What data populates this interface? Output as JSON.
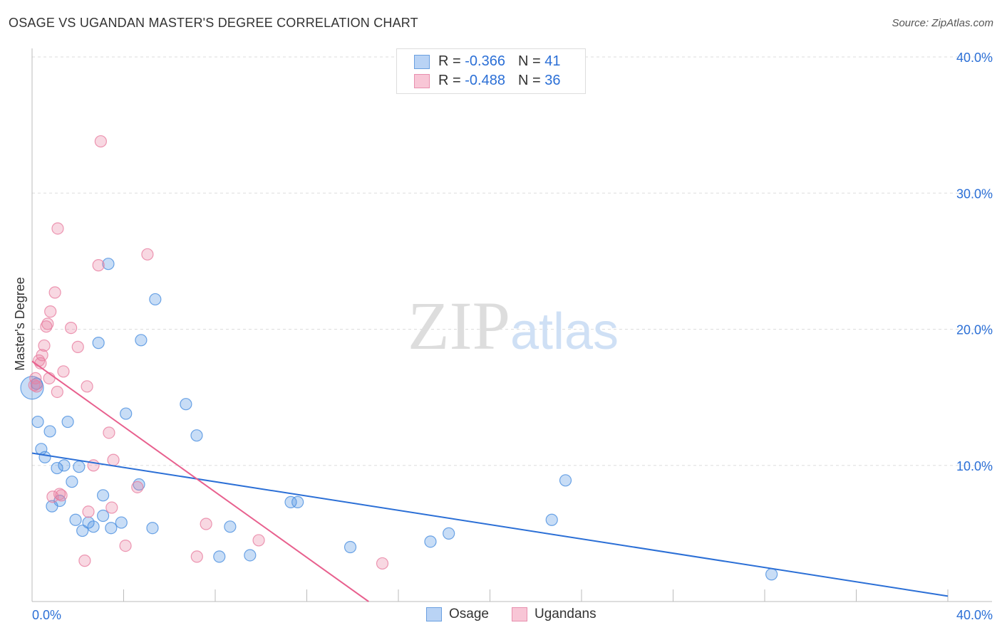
{
  "chart_data": {
    "type": "scatter",
    "title": "OSAGE VS UGANDAN MASTER'S DEGREE CORRELATION CHART",
    "source": "Source: ZipAtlas.com",
    "xlabel": "",
    "ylabel": "Master's Degree",
    "xlim": [
      0,
      40
    ],
    "ylim": [
      0,
      40
    ],
    "x_tick_labels": [
      "0.0%",
      "40.0%"
    ],
    "y_tick_labels": [
      "10.0%",
      "20.0%",
      "30.0%",
      "40.0%"
    ],
    "y_ticks": [
      10,
      20,
      30,
      40
    ],
    "watermark": "ZIPatlas",
    "legend": [
      {
        "r_label": "R =",
        "r": "-0.366",
        "n_label": "N =",
        "n": "41"
      },
      {
        "r_label": "R =",
        "r": "-0.488",
        "n_label": "N =",
        "n": "36"
      }
    ],
    "series": [
      {
        "name": "Osage",
        "color": "#4a8ee0",
        "line_color": "#2b6fd6",
        "trend": [
          [
            0,
            10.9
          ],
          [
            40,
            0.4
          ]
        ],
        "points": [
          [
            0,
            15.7
          ],
          [
            0.25,
            13.2
          ],
          [
            0.78,
            12.5
          ],
          [
            1.56,
            13.2
          ],
          [
            0.4,
            11.2
          ],
          [
            0.56,
            10.6
          ],
          [
            1.09,
            9.8
          ],
          [
            1.4,
            10.0
          ],
          [
            2.05,
            9.9
          ],
          [
            1.74,
            8.8
          ],
          [
            1.21,
            7.4
          ],
          [
            0.87,
            7.0
          ],
          [
            3.1,
            7.8
          ],
          [
            4.67,
            8.6
          ],
          [
            1.9,
            6.0
          ],
          [
            2.2,
            5.2
          ],
          [
            2.46,
            5.8
          ],
          [
            2.68,
            5.5
          ],
          [
            3.1,
            6.3
          ],
          [
            3.45,
            5.4
          ],
          [
            3.9,
            5.8
          ],
          [
            5.26,
            5.4
          ],
          [
            3.33,
            24.8
          ],
          [
            5.38,
            22.2
          ],
          [
            2.9,
            19.0
          ],
          [
            4.76,
            19.2
          ],
          [
            4.1,
            13.8
          ],
          [
            6.72,
            14.5
          ],
          [
            7.19,
            12.2
          ],
          [
            8.18,
            3.3
          ],
          [
            8.65,
            5.5
          ],
          [
            9.52,
            3.4
          ],
          [
            11.3,
            7.3
          ],
          [
            11.6,
            7.3
          ],
          [
            13.9,
            4.0
          ],
          [
            17.4,
            4.4
          ],
          [
            18.2,
            5.0
          ],
          [
            22.7,
            6.0
          ],
          [
            23.3,
            8.9
          ],
          [
            32.3,
            2.0
          ],
          [
            0.2,
            16.0
          ]
        ]
      },
      {
        "name": "Ugandans",
        "color": "#e87ea0",
        "line_color": "#e8608e",
        "trend": [
          [
            0,
            17.65
          ],
          [
            14.7,
            0
          ]
        ],
        "points": [
          [
            3.0,
            33.8
          ],
          [
            1.12,
            27.4
          ],
          [
            5.04,
            25.5
          ],
          [
            2.9,
            24.7
          ],
          [
            1.0,
            22.7
          ],
          [
            0.8,
            21.3
          ],
          [
            0.68,
            20.4
          ],
          [
            0.62,
            20.2
          ],
          [
            1.7,
            20.1
          ],
          [
            0.53,
            18.8
          ],
          [
            2.0,
            18.7
          ],
          [
            0.44,
            18.1
          ],
          [
            0.3,
            17.7
          ],
          [
            0.37,
            17.5
          ],
          [
            1.37,
            16.9
          ],
          [
            0.75,
            16.4
          ],
          [
            0.15,
            16.4
          ],
          [
            0.1,
            15.9
          ],
          [
            2.4,
            15.8
          ],
          [
            1.1,
            15.4
          ],
          [
            3.36,
            12.4
          ],
          [
            3.55,
            10.4
          ],
          [
            2.68,
            10.0
          ],
          [
            1.2,
            7.9
          ],
          [
            1.28,
            7.8
          ],
          [
            0.9,
            7.7
          ],
          [
            4.6,
            8.4
          ],
          [
            2.46,
            6.6
          ],
          [
            3.48,
            6.9
          ],
          [
            7.6,
            5.7
          ],
          [
            9.9,
            4.5
          ],
          [
            4.08,
            4.1
          ],
          [
            7.2,
            3.3
          ],
          [
            2.3,
            3.0
          ],
          [
            15.3,
            2.8
          ],
          [
            0.2,
            15.8
          ]
        ]
      }
    ]
  }
}
